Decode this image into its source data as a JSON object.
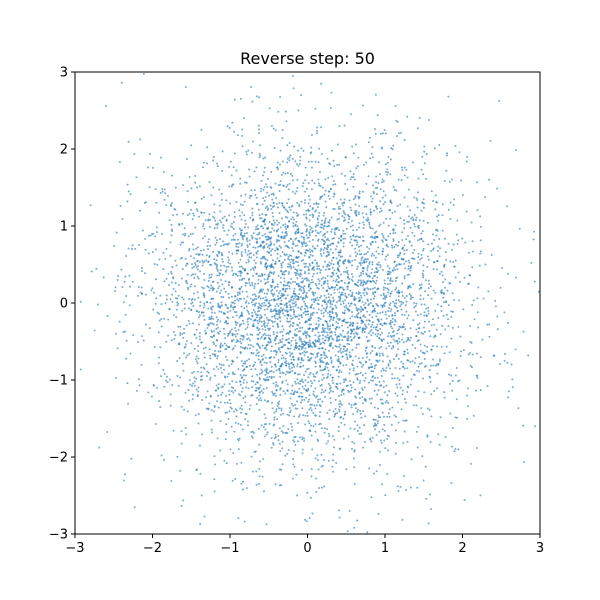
{
  "chart_data": {
    "type": "scatter",
    "title": "Reverse step: 50",
    "xlabel": "",
    "ylabel": "",
    "xlim": [
      -3,
      3
    ],
    "ylim": [
      -3,
      3
    ],
    "x_ticks": [
      -3,
      -2,
      -1,
      0,
      1,
      2,
      3
    ],
    "y_ticks": [
      -3,
      -2,
      -1,
      0,
      1,
      2,
      3
    ],
    "x_tick_labels": [
      "−3",
      "−2",
      "−1",
      "0",
      "1",
      "2",
      "3"
    ],
    "y_tick_labels": [
      "−3",
      "−2",
      "−1",
      "0",
      "1",
      "2",
      "3"
    ],
    "grid": false,
    "legend": "none",
    "marker_color": "#1f77b4",
    "distribution": {
      "description": "approximately 5000 points drawn from an isotropic 2D standard normal",
      "count": 5000,
      "mean": [
        0.0,
        0.0
      ],
      "std": [
        1.0,
        1.0
      ]
    }
  }
}
